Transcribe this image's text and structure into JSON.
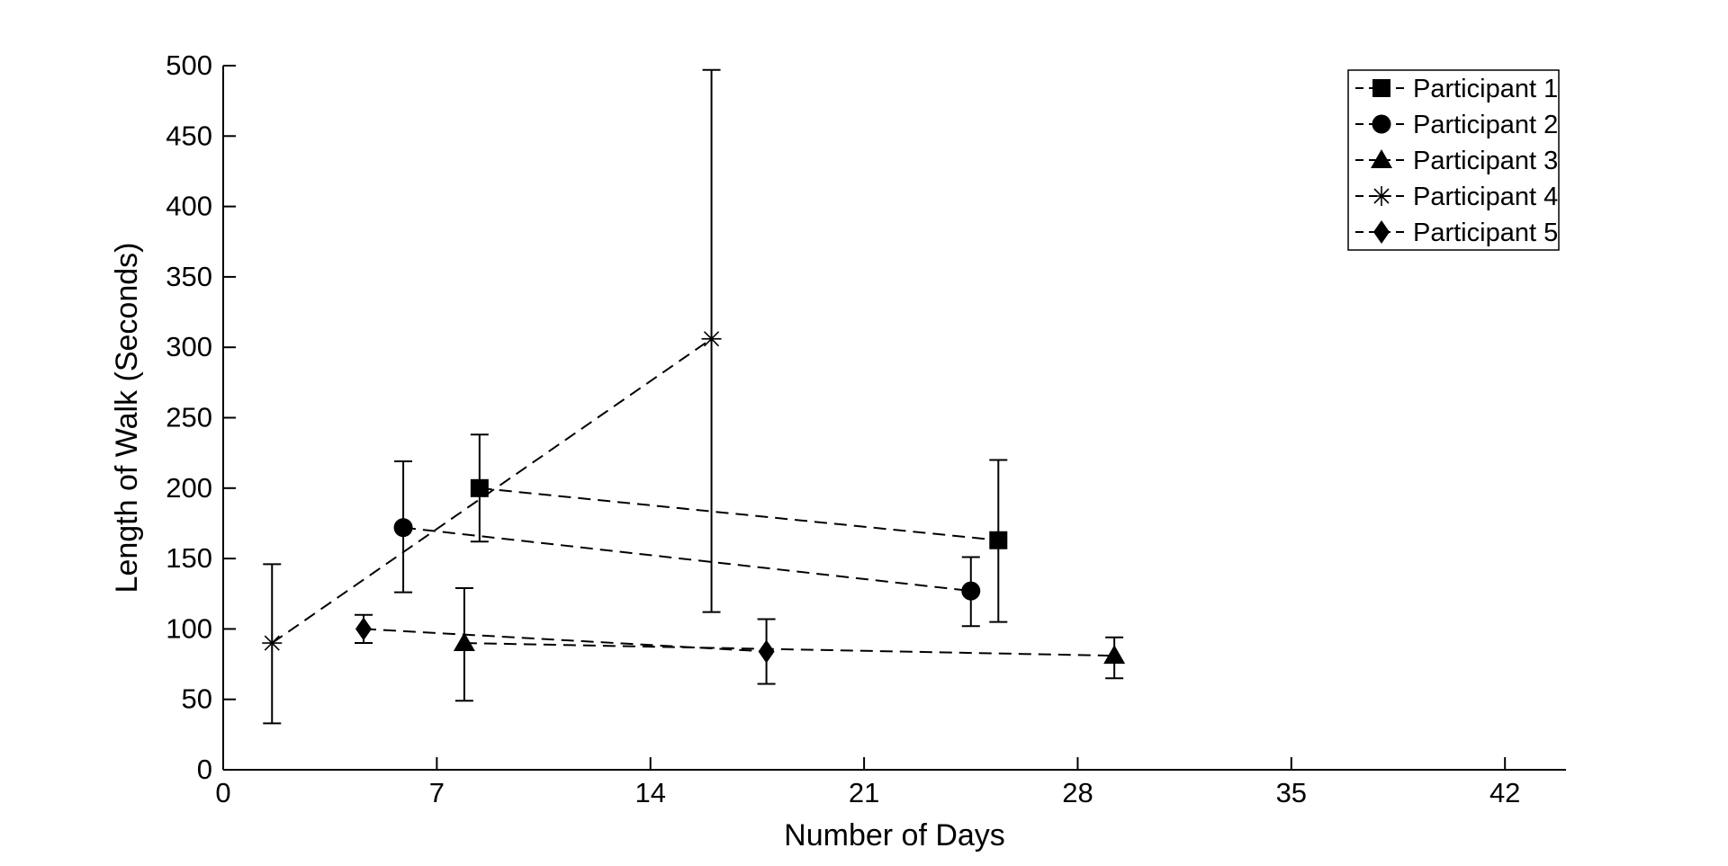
{
  "figure": {
    "background": "#ffffff",
    "foreground": "#000000"
  },
  "chart_data": {
    "type": "line",
    "subtype": "errorbar-scatter",
    "title": "",
    "xlabel": "Number of Days",
    "ylabel": "Length of Walk (Seconds)",
    "xlim": [
      0,
      44
    ],
    "ylim": [
      0,
      500
    ],
    "xticks": [
      0,
      7,
      14,
      21,
      28,
      35,
      42
    ],
    "yticks": [
      0,
      50,
      100,
      150,
      200,
      250,
      300,
      350,
      400,
      450,
      500
    ],
    "grid": false,
    "line_style": "dashed",
    "legend": {
      "position": "top-right",
      "background": "#ffffff",
      "border_color": "#000000",
      "entries": [
        "Participant 1",
        "Participant 2",
        "Participant 3",
        "Participant 4",
        "Participant 5"
      ]
    },
    "series": [
      {
        "name": "Participant 1",
        "marker": "square",
        "color": "#000000",
        "points": [
          {
            "x": 8.4,
            "y": 200,
            "err_minus": 38,
            "err_plus": 38
          },
          {
            "x": 25.4,
            "y": 163,
            "err_minus": 58,
            "err_plus": 57
          }
        ]
      },
      {
        "name": "Participant 2",
        "marker": "circle",
        "color": "#000000",
        "points": [
          {
            "x": 5.9,
            "y": 172,
            "err_minus": 46,
            "err_plus": 47
          },
          {
            "x": 24.5,
            "y": 127,
            "err_minus": 25,
            "err_plus": 24
          }
        ]
      },
      {
        "name": "Participant 3",
        "marker": "triangle",
        "color": "#000000",
        "points": [
          {
            "x": 7.9,
            "y": 90,
            "err_minus": 41,
            "err_plus": 39
          },
          {
            "x": 29.2,
            "y": 81,
            "err_minus": 16,
            "err_plus": 13
          }
        ]
      },
      {
        "name": "Participant 4",
        "marker": "asterisk",
        "color": "#000000",
        "points": [
          {
            "x": 1.6,
            "y": 90,
            "err_minus": 57,
            "err_plus": 56
          },
          {
            "x": 16.0,
            "y": 306,
            "err_minus": 194,
            "err_plus": 191
          }
        ]
      },
      {
        "name": "Participant 5",
        "marker": "diamond",
        "color": "#000000",
        "points": [
          {
            "x": 4.6,
            "y": 100,
            "err_minus": 10,
            "err_plus": 10
          },
          {
            "x": 17.8,
            "y": 84,
            "err_minus": 23,
            "err_plus": 23
          }
        ]
      }
    ]
  }
}
